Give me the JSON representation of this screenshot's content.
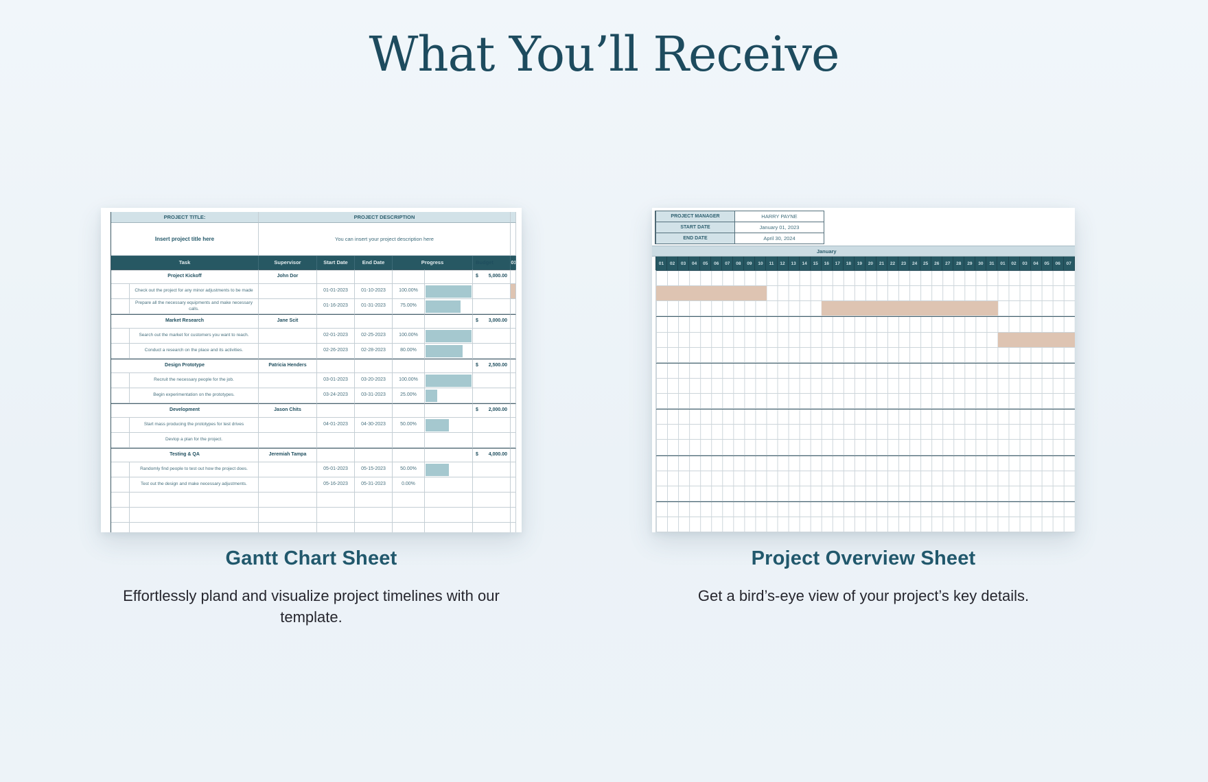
{
  "page": {
    "title": "What You’ll Receive"
  },
  "colors": {
    "accent_dark_teal": "#275863",
    "light_teal_cell": "#d2e2e8",
    "month_band": "#ccdce3",
    "progress_bar": "#a5c8cf",
    "gantt_bar_tan": "#dec4b2",
    "title_text": "#1d4b5e"
  },
  "gantt_sheet": {
    "caption": "Gantt Chart Sheet",
    "description": "Effortlessly pland and visualize project timelines with our template.",
    "project_title_label": "PROJECT TITLE:",
    "project_title_value": "Insert project title here",
    "project_description_label": "PROJECT DESCRIPTION",
    "project_description_value": "You can insert your project description here",
    "columns": [
      "Task",
      "Supervisor",
      "Start Date",
      "End Date",
      "Progress",
      "Budget"
    ],
    "cut_day_column_header": "01",
    "currency": "$",
    "groups": [
      {
        "name": "Project Kickoff",
        "supervisor": "John Dor",
        "budget": "5,000.00",
        "tasks": [
          {
            "task": "Check out the project for any minor adjustments to be made",
            "start": "01-01-2023",
            "end": "01-10-2023",
            "progress": "100.00%",
            "pct": 100,
            "cut_tan": true
          },
          {
            "task": "Prepare all the necessary equipments and make necessary calls.",
            "start": "01-16-2023",
            "end": "01-31-2023",
            "progress": "75.00%",
            "pct": 75
          }
        ]
      },
      {
        "name": "Market Research",
        "supervisor": "Jane Scit",
        "budget": "3,000.00",
        "tasks": [
          {
            "task": "Search out the market for customers you want to reach.",
            "start": "02-01-2023",
            "end": "02-25-2023",
            "progress": "100.00%",
            "pct": 100
          },
          {
            "task": "Conduct a research on the place and its activities.",
            "start": "02-26-2023",
            "end": "02-28-2023",
            "progress": "80.00%",
            "pct": 80
          }
        ]
      },
      {
        "name": "Design Prototype",
        "supervisor": "Patricia Henders",
        "budget": "2,500.00",
        "tasks": [
          {
            "task": "Recruit the necessary people for the job.",
            "start": "03-01-2023",
            "end": "03-20-2023",
            "progress": "100.00%",
            "pct": 100
          },
          {
            "task": "Begin experimentation on the prototypes.",
            "start": "03-24-2023",
            "end": "03-31-2023",
            "progress": "25.00%",
            "pct": 25
          }
        ]
      },
      {
        "name": "Development",
        "supervisor": "Jason Chits",
        "budget": "2,000.00",
        "tasks": [
          {
            "task": "Start mass producing the prototypes for test drives",
            "start": "04-01-2023",
            "end": "04-30-2023",
            "progress": "50.00%",
            "pct": 50
          },
          {
            "task": "Devlop a plan for the project.",
            "start": "",
            "end": "",
            "progress": "",
            "pct": null
          }
        ]
      },
      {
        "name": "Testing & QA",
        "supervisor": "Jeremiah Tampa",
        "budget": "4,000.00",
        "tasks": [
          {
            "task": "Randomly find people to test out how the project does.",
            "start": "05-01-2023",
            "end": "05-15-2023",
            "progress": "50.00%",
            "pct": 50
          },
          {
            "task": "Test out the design and make necessary adjustments.",
            "start": "05-16-2023",
            "end": "05-31-2023",
            "progress": "0.00%",
            "pct": 0
          }
        ]
      }
    ],
    "empty_rows": 3
  },
  "overview_sheet": {
    "caption": "Project Overview Sheet",
    "description": "Get a bird’s-eye view of your project’s key details.",
    "info": [
      {
        "label": "PROJECT MANAGER",
        "value": "HARRY PAYNE"
      },
      {
        "label": "START DATE",
        "value": "January 01, 2023"
      },
      {
        "label": "END DATE",
        "value": "April 30, 2024"
      }
    ],
    "month_label": "January",
    "days": [
      "01",
      "02",
      "03",
      "04",
      "05",
      "06",
      "07",
      "08",
      "09",
      "10",
      "11",
      "12",
      "13",
      "14",
      "15",
      "16",
      "17",
      "18",
      "19",
      "20",
      "21",
      "22",
      "23",
      "24",
      "25",
      "26",
      "27",
      "28",
      "29",
      "30",
      "31",
      "01",
      "02",
      "03",
      "04",
      "05",
      "06",
      "07"
    ],
    "grid_rows": 17,
    "group_row_indices": [
      0,
      3,
      6,
      9,
      12,
      15
    ],
    "bars": [
      {
        "row": 1,
        "from_day_col": 1,
        "to_day_col": 10
      },
      {
        "row": 2,
        "from_day_col": 16,
        "to_day_col": 31
      },
      {
        "row": 4,
        "from_day_col": 32,
        "to_day_col": 38
      }
    ]
  }
}
